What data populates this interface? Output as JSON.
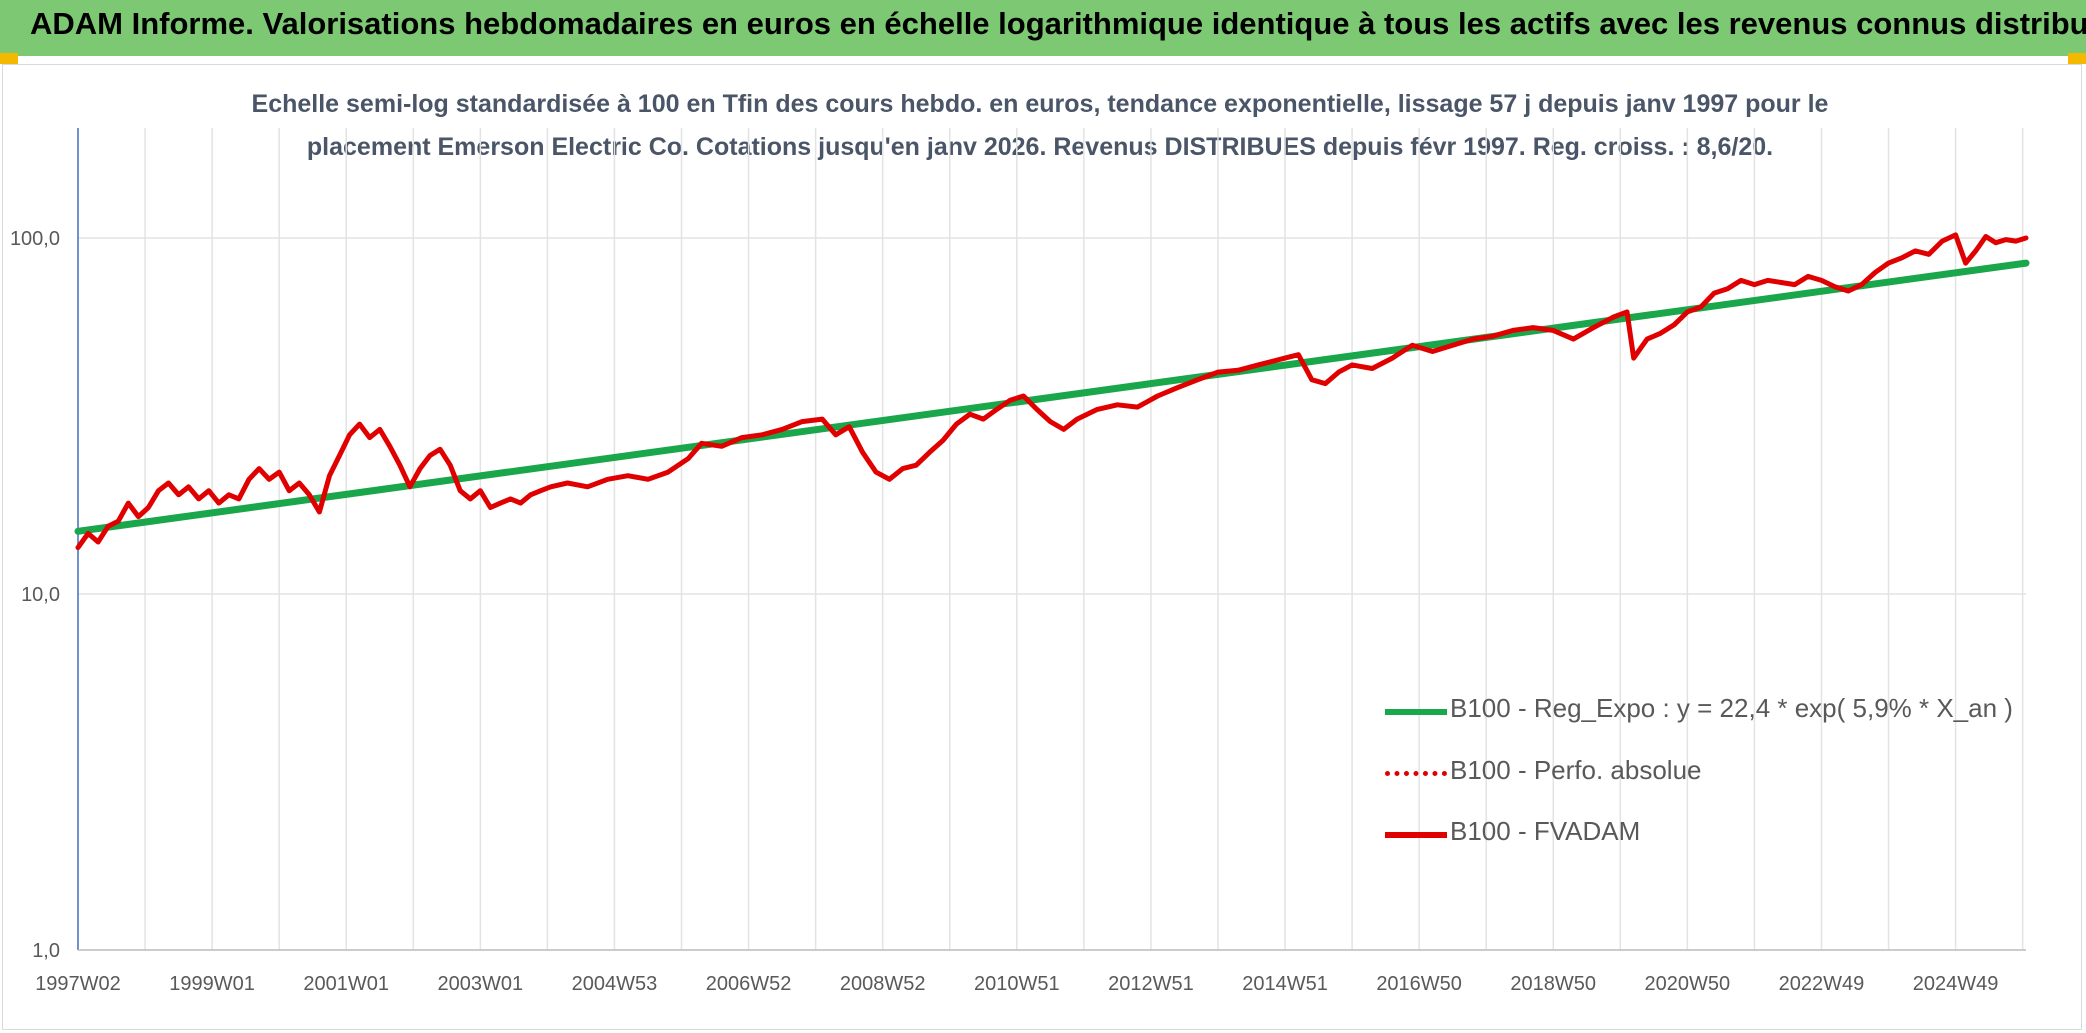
{
  "header": {
    "title": "ADAM Informe. Valorisations hebdomadaires en euros en échelle logarithmique identique à tous les actifs avec les revenus connus distribués"
  },
  "chart_data": {
    "type": "line",
    "title_line1": "Echelle semi-log standardisée à 100 en Tfin des cours hebdo. en euros, tendance exponentielle, lissage 57 j depuis janv 1997 pour le",
    "title_line2": "placement Emerson Electric Co. Cotations jusqu'en janv 2026. Revenus DISTRIBUES depuis févr 1997. Reg. croiss. : 8,6/20.",
    "y_scale": "log",
    "ylim": [
      1,
      100
    ],
    "y_ticks": [
      "1,0",
      "10,0",
      "100,0"
    ],
    "y_tick_values": [
      1,
      10,
      100
    ],
    "x_ticks": [
      "1997W02",
      "1999W01",
      "2001W01",
      "2003W01",
      "2004W53",
      "2006W52",
      "2008W52",
      "2010W51",
      "2012W51",
      "2014W51",
      "2016W50",
      "2018W50",
      "2020W50",
      "2022W49",
      "2024W49"
    ],
    "x_tick_years": [
      1997.0,
      1999.0,
      2001.0,
      2003.0,
      2005.0,
      2007.0,
      2009.0,
      2011.0,
      2013.0,
      2015.0,
      2017.0,
      2019.0,
      2021.0,
      2023.0,
      2025.0
    ],
    "x_range": [
      1997.0,
      2026.05
    ],
    "grid": true,
    "legend_position": "bottom-right",
    "series": [
      {
        "name": "B100 - Reg_Expo : y = 22,4 * exp( 5,9% *  X_an )",
        "color": "#1aa64b",
        "style": "solid",
        "x": [
          1997.0,
          2026.05
        ],
        "y": [
          15.0,
          85.0
        ]
      },
      {
        "name": "B100 - Perfo. absolue",
        "color": "#e00000",
        "style": "dotted",
        "x": [],
        "y": []
      },
      {
        "name": "B100 - FVADAM",
        "color": "#e00000",
        "style": "solid",
        "x": [
          1997.0,
          1997.15,
          1997.3,
          1997.45,
          1997.6,
          1997.75,
          1997.9,
          1998.05,
          1998.2,
          1998.35,
          1998.5,
          1998.65,
          1998.8,
          1998.95,
          1999.1,
          1999.25,
          1999.4,
          1999.55,
          1999.7,
          1999.85,
          2000.0,
          2000.15,
          2000.3,
          2000.45,
          2000.6,
          2000.75,
          2000.9,
          2001.05,
          2001.2,
          2001.35,
          2001.5,
          2001.65,
          2001.8,
          2001.95,
          2002.1,
          2002.25,
          2002.4,
          2002.55,
          2002.7,
          2002.85,
          2003.0,
          2003.15,
          2003.3,
          2003.45,
          2003.6,
          2003.75,
          2003.9,
          2004.05,
          2004.3,
          2004.6,
          2004.9,
          2005.2,
          2005.5,
          2005.8,
          2006.1,
          2006.3,
          2006.6,
          2006.9,
          2007.2,
          2007.5,
          2007.8,
          2008.1,
          2008.3,
          2008.5,
          2008.7,
          2008.9,
          2009.1,
          2009.3,
          2009.5,
          2009.7,
          2009.9,
          2010.1,
          2010.3,
          2010.5,
          2010.7,
          2010.9,
          2011.1,
          2011.3,
          2011.5,
          2011.7,
          2011.9,
          2012.2,
          2012.5,
          2012.8,
          2013.1,
          2013.4,
          2013.7,
          2014.0,
          2014.3,
          2014.6,
          2014.8,
          2015.0,
          2015.2,
          2015.4,
          2015.6,
          2015.8,
          2016.0,
          2016.3,
          2016.6,
          2016.9,
          2017.2,
          2017.5,
          2017.8,
          2018.1,
          2018.4,
          2018.7,
          2019.0,
          2019.3,
          2019.6,
          2019.9,
          2020.1,
          2020.2,
          2020.4,
          2020.6,
          2020.8,
          2021.0,
          2021.2,
          2021.4,
          2021.6,
          2021.8,
          2022.0,
          2022.2,
          2022.4,
          2022.6,
          2022.8,
          2023.0,
          2023.2,
          2023.4,
          2023.6,
          2023.8,
          2024.0,
          2024.2,
          2024.4,
          2024.6,
          2024.8,
          2025.0,
          2025.15,
          2025.3,
          2025.45,
          2025.6,
          2025.75,
          2025.9,
          2026.05
        ],
        "y": [
          13.5,
          14.8,
          14.0,
          15.5,
          16.0,
          18.0,
          16.5,
          17.5,
          19.5,
          20.5,
          19.0,
          20.0,
          18.5,
          19.5,
          18.0,
          19.0,
          18.5,
          21.0,
          22.5,
          21.0,
          22.0,
          19.5,
          20.5,
          19.0,
          17.0,
          21.5,
          24.5,
          28.0,
          30.0,
          27.5,
          29.0,
          26.0,
          23.0,
          20.0,
          22.5,
          24.5,
          25.5,
          23.0,
          19.5,
          18.5,
          19.5,
          17.5,
          18.0,
          18.5,
          18.0,
          19.0,
          19.5,
          20.0,
          20.5,
          20.0,
          21.0,
          21.5,
          21.0,
          22.0,
          24.0,
          26.5,
          26.0,
          27.5,
          28.0,
          29.0,
          30.5,
          31.0,
          28.0,
          29.5,
          25.0,
          22.0,
          21.0,
          22.5,
          23.0,
          25.0,
          27.0,
          30.0,
          32.0,
          31.0,
          33.0,
          35.0,
          36.0,
          33.0,
          30.5,
          29.0,
          31.0,
          33.0,
          34.0,
          33.5,
          36.0,
          38.0,
          40.0,
          42.0,
          42.5,
          44.0,
          45.0,
          46.0,
          47.0,
          40.0,
          39.0,
          42.0,
          44.0,
          43.0,
          46.0,
          50.0,
          48.0,
          50.0,
          52.0,
          53.0,
          55.0,
          56.0,
          55.0,
          52.0,
          56.0,
          60.0,
          62.0,
          46.0,
          52.0,
          54.0,
          57.0,
          62.0,
          64.0,
          70.0,
          72.0,
          76.0,
          74.0,
          76.0,
          75.0,
          74.0,
          78.0,
          76.0,
          73.0,
          71.0,
          74.0,
          80.0,
          85.0,
          88.0,
          92.0,
          90.0,
          98.0,
          102.0,
          85.0,
          92.0,
          101.0,
          97.0,
          99.0,
          98.0,
          100.0
        ]
      }
    ]
  }
}
